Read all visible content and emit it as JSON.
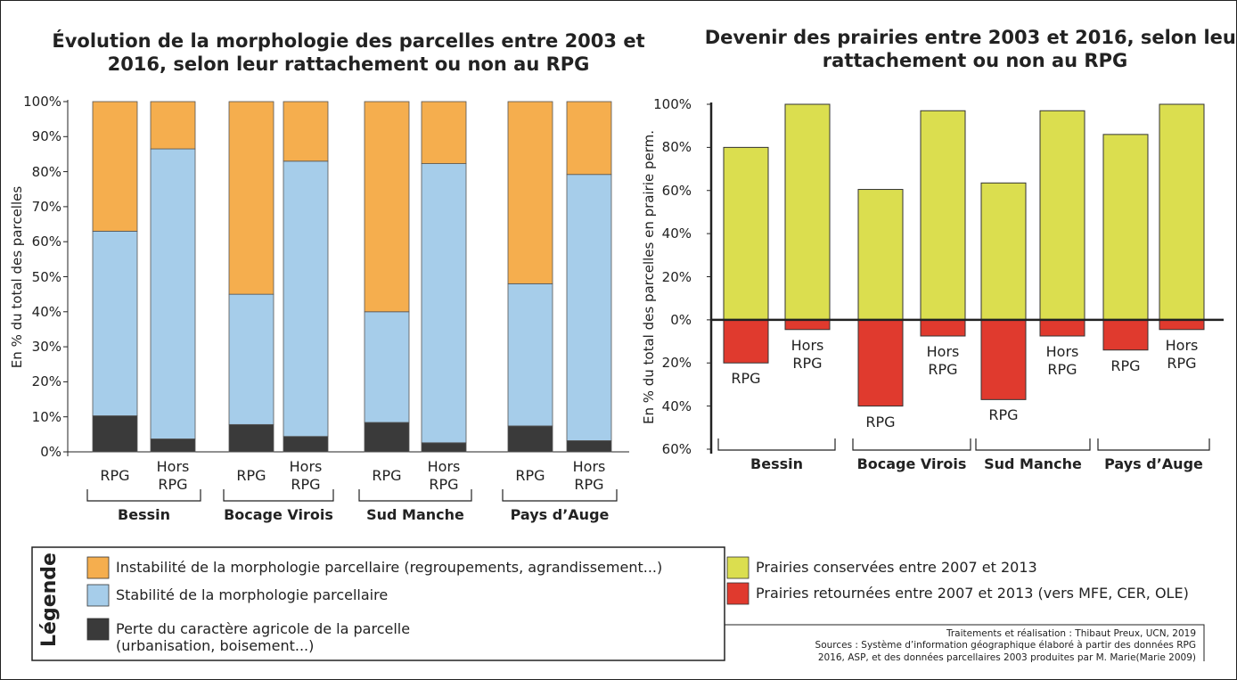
{
  "chart_data": [
    {
      "type": "stacked_bar",
      "title": "Évolution de la morphologie des parcelles entre 2003 et 2016, selon leur rattachement ou non au RPG",
      "y_label": "En % du total des parcelles",
      "categories": [
        "RPG",
        "Hors RPG",
        "RPG",
        "Hors RPG",
        "RPG",
        "Hors RPG",
        "RPG",
        "Hors RPG"
      ],
      "groups": [
        "Bessin",
        "Bocage Virois",
        "Sud Manche",
        "Pays d’Auge"
      ],
      "series": [
        {
          "name": "Perte du caractère agricole de la parcelle (urbanisation, boisement...)",
          "color": "#3a3a3a",
          "values": [
            10.3,
            3.7,
            7.8,
            4.4,
            8.4,
            2.6,
            7.4,
            3.2
          ]
        },
        {
          "name": "Stabilité de la morphologie parcellaire",
          "color": "#a6cdea",
          "values": [
            52.7,
            82.8,
            37.2,
            78.6,
            31.6,
            79.7,
            40.6,
            76
          ]
        },
        {
          "name": "Instabilité de la morphologie parcellaire (regroupements, agrandissement...)",
          "color": "#f5ae4e",
          "values": [
            37,
            13.5,
            55,
            17,
            60,
            17.7,
            52,
            20.8
          ]
        }
      ],
      "ylim": [
        0,
        100
      ],
      "yticks": [
        {
          "value": 0,
          "label": "0%"
        },
        {
          "value": 10,
          "label": "10%"
        },
        {
          "value": 20,
          "label": "20%"
        },
        {
          "value": 30,
          "label": "30%"
        },
        {
          "value": 40,
          "label": "40%"
        },
        {
          "value": 50,
          "label": "50%"
        },
        {
          "value": 60,
          "label": "60%"
        },
        {
          "value": 70,
          "label": "70%"
        },
        {
          "value": 80,
          "label": "80%"
        },
        {
          "value": 90,
          "label": "90%"
        },
        {
          "value": 100,
          "label": "100%"
        }
      ]
    },
    {
      "type": "bar",
      "title": "Devenir des prairies entre 2003 et 2016, selon leur rattachement ou non au RPG",
      "y_label": "En % du total des parcelles en prairie perm.",
      "categories": [
        "RPG",
        "Hors RPG",
        "RPG",
        "Hors RPG",
        "RPG",
        "Hors RPG",
        "RPG",
        "Hors RPG"
      ],
      "groups": [
        "Bessin",
        "Bocage Virois",
        "Sud Manche",
        "Pays d’Auge"
      ],
      "series": [
        {
          "name": "Prairies conservées entre 2007 et 2013",
          "color": "#dbde4f",
          "values": [
            80,
            100,
            60.5,
            97,
            63.5,
            97,
            86,
            100
          ]
        },
        {
          "name": "Prairies retournées entre 2007 et 2013 (vers MFE, CER, OLE)",
          "color": "#e03a2e",
          "values": [
            -20,
            -4.5,
            -40,
            -7.5,
            -37,
            -7.5,
            -14,
            -4.5
          ]
        }
      ],
      "ylim": [
        -60,
        100
      ],
      "yticks": [
        {
          "value": -60,
          "label": "60%"
        },
        {
          "value": -40,
          "label": "40%"
        },
        {
          "value": -20,
          "label": "20%"
        },
        {
          "value": 0,
          "label": "0%"
        },
        {
          "value": 20,
          "label": "20%"
        },
        {
          "value": 40,
          "label": "40%"
        },
        {
          "value": 60,
          "label": "60%"
        },
        {
          "value": 80,
          "label": "80%"
        },
        {
          "value": 100,
          "label": "100%"
        }
      ]
    }
  ],
  "legend_title": "Légende",
  "credits": [
    "Traitements et réalisation : Thibaut Preux, UCN, 2019",
    "Sources : Système d’information géographique élaboré à partir des données RPG 2016, ASP, et des données parcellaires 2003 produites par M. Marie(Marie 2009)"
  ]
}
